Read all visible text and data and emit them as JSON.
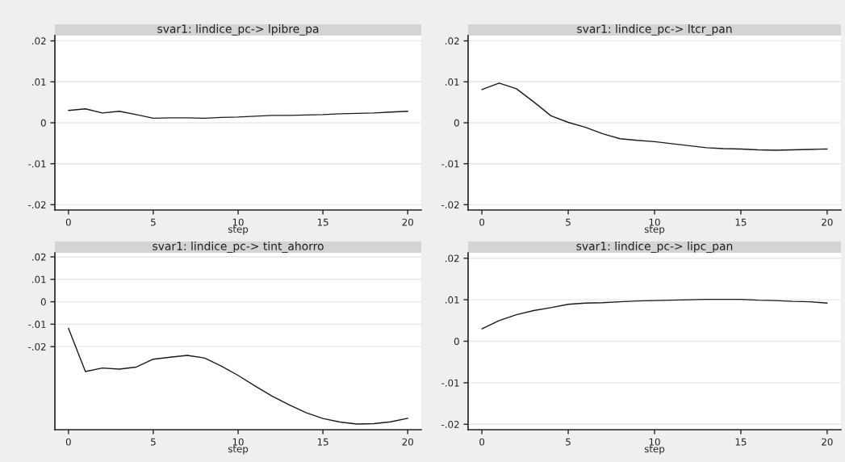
{
  "chart_data": [
    {
      "type": "line",
      "title": "svar1: lindice_pc-> lpibre_pa",
      "xlabel": "step",
      "color": "#1a1a1a",
      "grid": "y",
      "xlim": [
        -0.8,
        20.8
      ],
      "xticks": [
        0,
        5,
        10,
        15,
        20
      ],
      "ylim": [
        -0.0213,
        0.0213
      ],
      "yticks": [
        {
          "value": -0.02,
          "label": "-.02"
        },
        {
          "value": -0.01,
          "label": "-.01"
        },
        0,
        {
          "value": 0.01,
          "label": ".01"
        },
        {
          "value": 0.02,
          "label": ".02"
        }
      ],
      "x": [
        0,
        1,
        2,
        3,
        4,
        5,
        6,
        7,
        8,
        9,
        10,
        11,
        12,
        13,
        14,
        15,
        16,
        17,
        18,
        19,
        20
      ],
      "values": [
        0.003,
        0.0034,
        0.0024,
        0.0028,
        0.002,
        0.0011,
        0.0012,
        0.0012,
        0.0011,
        0.0013,
        0.0014,
        0.0016,
        0.0018,
        0.0018,
        0.0019,
        0.002,
        0.0022,
        0.0023,
        0.0024,
        0.0026,
        0.0028
      ]
    },
    {
      "type": "line",
      "title": "svar1: lindice_pc-> ltcr_pan",
      "xlabel": "step",
      "color": "#1a1a1a",
      "grid": "y",
      "xlim": [
        -0.8,
        20.8
      ],
      "xticks": [
        0,
        5,
        10,
        15,
        20
      ],
      "ylim": [
        -0.0213,
        0.0213
      ],
      "yticks": [
        {
          "value": -0.02,
          "label": "-.02"
        },
        {
          "value": -0.01,
          "label": "-.01"
        },
        0,
        {
          "value": 0.01,
          "label": ".01"
        },
        {
          "value": 0.02,
          "label": ".02"
        }
      ],
      "x": [
        0,
        1,
        2,
        3,
        4,
        5,
        6,
        7,
        8,
        9,
        10,
        11,
        12,
        13,
        14,
        15,
        16,
        17,
        18,
        19,
        20
      ],
      "values": [
        0.0081,
        0.0097,
        0.0083,
        0.0051,
        0.0017,
        0.0001,
        -0.0011,
        -0.0027,
        -0.0039,
        -0.0043,
        -0.0046,
        -0.0051,
        -0.0056,
        -0.0061,
        -0.0063,
        -0.0064,
        -0.0066,
        -0.0067,
        -0.0066,
        -0.0065,
        -0.0064
      ]
    },
    {
      "type": "line",
      "title": "svar1: lindice_pc-> tint_ahorro",
      "xlabel": "step",
      "color": "#1a1a1a",
      "grid": "y",
      "xlim": [
        -0.8,
        20.8
      ],
      "xticks": [
        0,
        5,
        10,
        15,
        20
      ],
      "ylim": [
        -0.057,
        0.0218
      ],
      "yticks": [
        {
          "value": -0.02,
          "label": "-.02"
        },
        {
          "value": -0.01,
          "label": "-.01"
        },
        0,
        {
          "value": 0.01,
          "label": ".01"
        },
        {
          "value": 0.02,
          "label": ".02"
        }
      ],
      "x": [
        0,
        1,
        2,
        3,
        4,
        5,
        6,
        7,
        8,
        9,
        10,
        11,
        12,
        13,
        14,
        15,
        16,
        17,
        18,
        19,
        20
      ],
      "values": [
        -0.0118,
        -0.0311,
        -0.0295,
        -0.03,
        -0.0291,
        -0.0256,
        -0.0247,
        -0.0239,
        -0.025,
        -0.0286,
        -0.0328,
        -0.0375,
        -0.042,
        -0.0459,
        -0.0494,
        -0.052,
        -0.0536,
        -0.0545,
        -0.0543,
        -0.0535,
        -0.0519
      ]
    },
    {
      "type": "line",
      "title": "svar1: lindice_pc-> lipc_pan",
      "xlabel": "step",
      "color": "#1a1a1a",
      "grid": "y",
      "xlim": [
        -0.8,
        20.8
      ],
      "xticks": [
        0,
        5,
        10,
        15,
        20
      ],
      "ylim": [
        -0.0213,
        0.0213
      ],
      "yticks": [
        {
          "value": -0.02,
          "label": "-.02"
        },
        {
          "value": -0.01,
          "label": "-.01"
        },
        0,
        {
          "value": 0.01,
          "label": ".01"
        },
        {
          "value": 0.02,
          "label": ".02"
        }
      ],
      "x": [
        0,
        1,
        2,
        3,
        4,
        5,
        6,
        7,
        8,
        9,
        10,
        11,
        12,
        13,
        14,
        15,
        16,
        17,
        18,
        19,
        20
      ],
      "values": [
        0.003,
        0.005,
        0.0064,
        0.0074,
        0.0081,
        0.0089,
        0.0092,
        0.0093,
        0.0095,
        0.0097,
        0.0098,
        0.0099,
        0.01,
        0.0101,
        0.0101,
        0.0101,
        0.0099,
        0.0098,
        0.0096,
        0.0095,
        0.0092
      ]
    }
  ]
}
